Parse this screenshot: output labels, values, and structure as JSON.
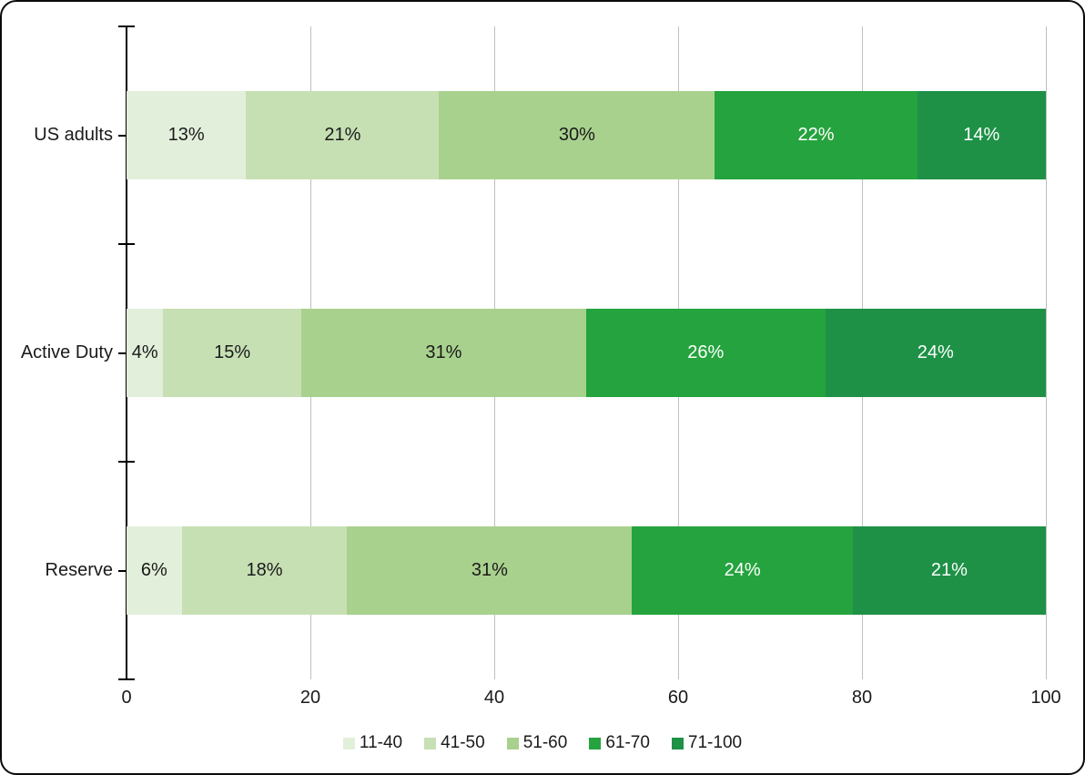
{
  "chart_data": {
    "type": "bar",
    "orientation": "horizontal",
    "stacked": true,
    "title": "",
    "categories": [
      "US adults",
      "Active Duty",
      "Reserve"
    ],
    "series": [
      {
        "name": "11-40",
        "color": "#e2efda",
        "label_color": "#1a1a1a",
        "values": [
          13,
          4,
          6
        ]
      },
      {
        "name": "41-50",
        "color": "#c6e0b4",
        "label_color": "#1a1a1a",
        "values": [
          21,
          15,
          18
        ]
      },
      {
        "name": "51-60",
        "color": "#a9d18e",
        "label_color": "#1a1a1a",
        "values": [
          30,
          31,
          31
        ]
      },
      {
        "name": "61-70",
        "color": "#25a33e",
        "label_color": "#ffffff",
        "values": [
          22,
          26,
          24
        ]
      },
      {
        "name": "71-100",
        "color": "#1e9146",
        "label_color": "#ffffff",
        "values": [
          14,
          24,
          21
        ]
      }
    ],
    "data_label_suffix": "%",
    "x_axis": {
      "ticks": [
        "0",
        "20",
        "40",
        "60",
        "80",
        "100"
      ],
      "tick_values": [
        0,
        20,
        40,
        60,
        80,
        100
      ],
      "range": [
        0,
        100
      ],
      "gridlines": true
    },
    "legend": {
      "position": "bottom",
      "entries": [
        "11-40",
        "41-50",
        "51-60",
        "61-70",
        "71-100"
      ]
    },
    "colors": {
      "grid": "#c0c0c0",
      "axis": "#000000",
      "text": "#1a1a1a",
      "background": "#ffffff"
    }
  }
}
